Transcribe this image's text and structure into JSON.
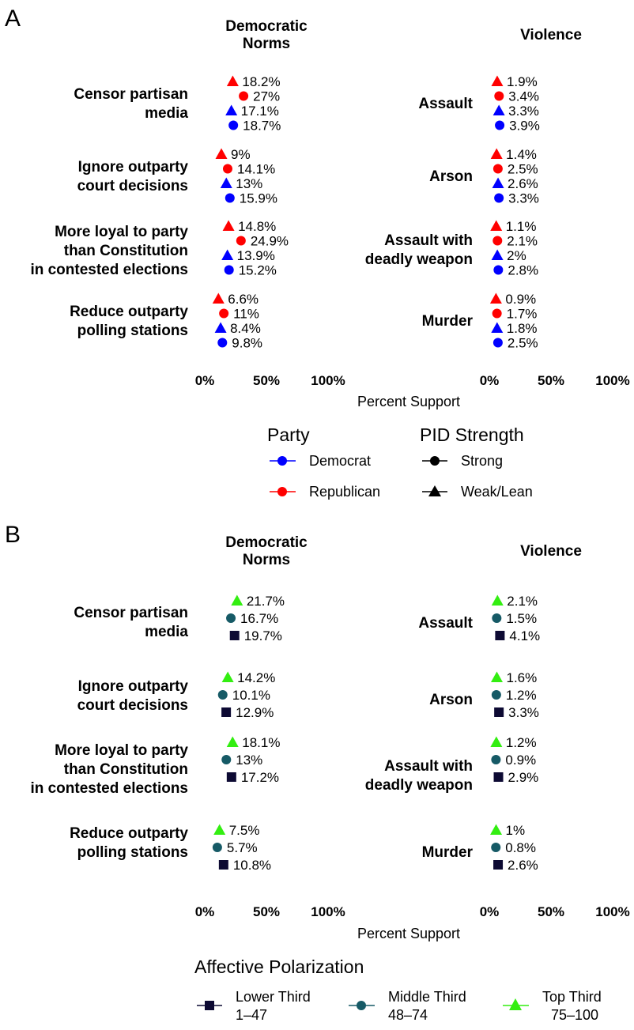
{
  "chart_data": [
    {
      "type": "scatter",
      "panel": "A",
      "facets": [
        "Democratic Norms",
        "Violence"
      ],
      "xlabel": "Percent Support",
      "xlim": [
        0,
        100
      ],
      "xticks": [
        "0%",
        "50%",
        "100%"
      ],
      "row_labels": {
        "Democratic Norms": [
          "Censor partisan media",
          "Ignore outparty court decisions",
          "More loyal to party than Constitution in contested elections",
          "Reduce outparty polling stations"
        ],
        "Violence": [
          "Assault",
          "Arson",
          "Assault with deadly weapon",
          "Murder"
        ]
      },
      "series": [
        {
          "name": "Republican Weak/Lean",
          "color": "#ff0000",
          "shape": "triangle",
          "norms": [
            18.2,
            9,
            14.8,
            6.6
          ],
          "violence": [
            1.9,
            1.4,
            1.1,
            0.9
          ],
          "norms_labels": [
            "18.2%",
            "9%",
            "14.8%",
            "6.6%"
          ],
          "violence_labels": [
            "1.9%",
            "1.4%",
            "1.1%",
            "0.9%"
          ]
        },
        {
          "name": "Republican Strong",
          "color": "#ff0000",
          "shape": "circle",
          "norms": [
            27,
            14.1,
            24.9,
            11
          ],
          "violence": [
            3.4,
            2.5,
            2.1,
            1.7
          ],
          "norms_labels": [
            "27%",
            "14.1%",
            "24.9%",
            "11%"
          ],
          "violence_labels": [
            "3.4%",
            "2.5%",
            "2.1%",
            "1.7%"
          ]
        },
        {
          "name": "Democrat Weak/Lean",
          "color": "#0000ff",
          "shape": "triangle",
          "norms": [
            17.1,
            13,
            13.9,
            8.4
          ],
          "violence": [
            3.3,
            2.6,
            2,
            1.8
          ],
          "norms_labels": [
            "17.1%",
            "13%",
            "13.9%",
            "8.4%"
          ],
          "violence_labels": [
            "3.3%",
            "2.6%",
            "2%",
            "1.8%"
          ]
        },
        {
          "name": "Democrat Strong",
          "color": "#0000ff",
          "shape": "circle",
          "norms": [
            18.7,
            15.9,
            15.2,
            9.8
          ],
          "violence": [
            3.9,
            3.3,
            2.8,
            2.5
          ],
          "norms_labels": [
            "18.7%",
            "15.9%",
            "15.2%",
            "9.8%"
          ],
          "violence_labels": [
            "3.9%",
            "3.3%",
            "2.8%",
            "2.5%"
          ]
        }
      ],
      "legend": {
        "groups": [
          {
            "title": "Party",
            "items": [
              {
                "label": "Democrat",
                "color": "#0000ff",
                "shape": "circle"
              },
              {
                "label": "Republican",
                "color": "#ff0000",
                "shape": "circle"
              }
            ]
          },
          {
            "title": "PID Strength",
            "items": [
              {
                "label": "Strong",
                "color": "#000000",
                "shape": "circle"
              },
              {
                "label": "Weak/Lean",
                "color": "#000000",
                "shape": "triangle"
              }
            ]
          }
        ]
      }
    },
    {
      "type": "scatter",
      "panel": "B",
      "facets": [
        "Democratic Norms",
        "Violence"
      ],
      "xlabel": "Percent Support",
      "xlim": [
        0,
        100
      ],
      "xticks": [
        "0%",
        "50%",
        "100%"
      ],
      "row_labels": {
        "Democratic Norms": [
          "Censor partisan media",
          "Ignore outparty court decisions",
          "More loyal to party than Constitution in contested elections",
          "Reduce outparty polling stations"
        ],
        "Violence": [
          "Assault",
          "Arson",
          "Assault with deadly weapon",
          "Murder"
        ]
      },
      "series": [
        {
          "name": "Top Third 75-100",
          "color": "#33ee11",
          "shape": "triangle",
          "norms": [
            21.7,
            14.2,
            18.1,
            7.5
          ],
          "violence": [
            2.1,
            1.6,
            1.2,
            1
          ],
          "norms_labels": [
            "21.7%",
            "14.2%",
            "18.1%",
            "7.5%"
          ],
          "violence_labels": [
            "2.1%",
            "1.6%",
            "1.2%",
            "1%"
          ]
        },
        {
          "name": "Middle Third 48-74",
          "color": "#165a66",
          "shape": "circle",
          "norms": [
            16.7,
            10.1,
            13,
            5.7
          ],
          "violence": [
            1.5,
            1.2,
            0.9,
            0.8
          ],
          "norms_labels": [
            "16.7%",
            "10.1%",
            "13%",
            "5.7%"
          ],
          "violence_labels": [
            "1.5%",
            "1.2%",
            "0.9%",
            "0.8%"
          ]
        },
        {
          "name": "Lower Third 1-47",
          "color": "#0d0a33",
          "shape": "square",
          "norms": [
            19.7,
            12.9,
            17.2,
            10.8
          ],
          "violence": [
            4.1,
            3.3,
            2.9,
            2.6
          ],
          "norms_labels": [
            "19.7%",
            "12.9%",
            "17.2%",
            "10.8%"
          ],
          "violence_labels": [
            "4.1%",
            "3.3%",
            "2.9%",
            "2.6%"
          ]
        }
      ],
      "legend": {
        "title": "Affective Polarization",
        "items": [
          {
            "label1": "Lower Third",
            "label2": "1–47",
            "color": "#0d0a33",
            "shape": "square"
          },
          {
            "label1": "Middle Third",
            "label2": "48–74",
            "color": "#165a66",
            "shape": "circle"
          },
          {
            "label1": "Top Third",
            "label2": "75–100",
            "color": "#33ee11",
            "shape": "triangle"
          }
        ]
      }
    }
  ]
}
